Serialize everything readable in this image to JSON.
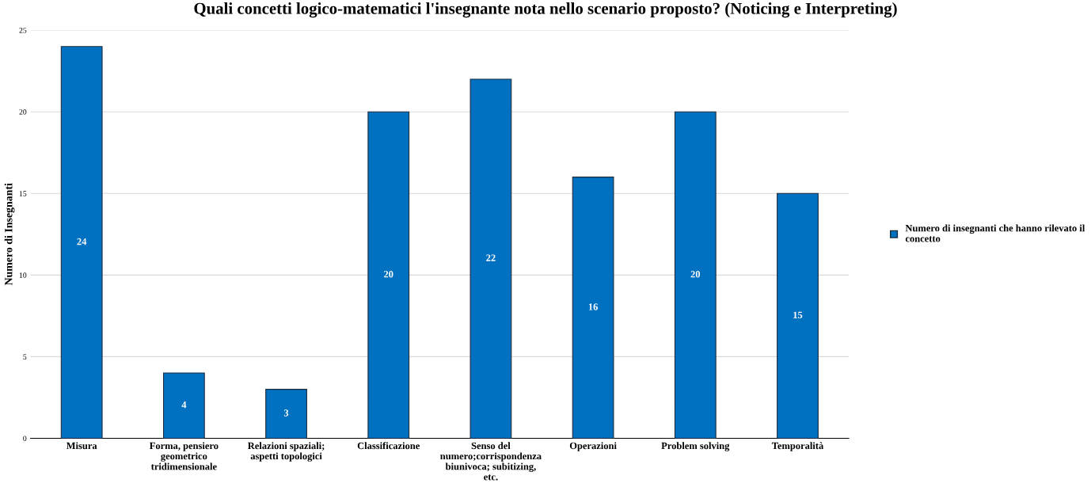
{
  "chart_data": {
    "type": "bar",
    "title": "Quali concetti logico-matematici l'insegnante nota nello scenario proposto? (Noticing e Interpreting)",
    "ylabel": "Numero di Insegnanti",
    "categories": [
      "Misura",
      "Forma, pensiero\ngeometrico\ntridimensionale",
      "Relazioni spaziali;\naspetti topologici",
      "Classificazione",
      "Senso del\nnumero;corrispondenza\nbiunivoca; subitizing,\netc.",
      "Operazioni",
      "Problem solving",
      "Temporalità"
    ],
    "series": [
      {
        "name": "Numero di insegnanti che hanno rilevato il\nconcetto",
        "color": "#0070c0",
        "values": [
          24,
          4,
          3,
          20,
          22,
          16,
          20,
          15
        ]
      }
    ],
    "ylim": [
      0,
      25
    ],
    "yticks": [
      0,
      5,
      10,
      15,
      20,
      25
    ],
    "grid": "y",
    "legend": "right",
    "data_labels": true
  }
}
